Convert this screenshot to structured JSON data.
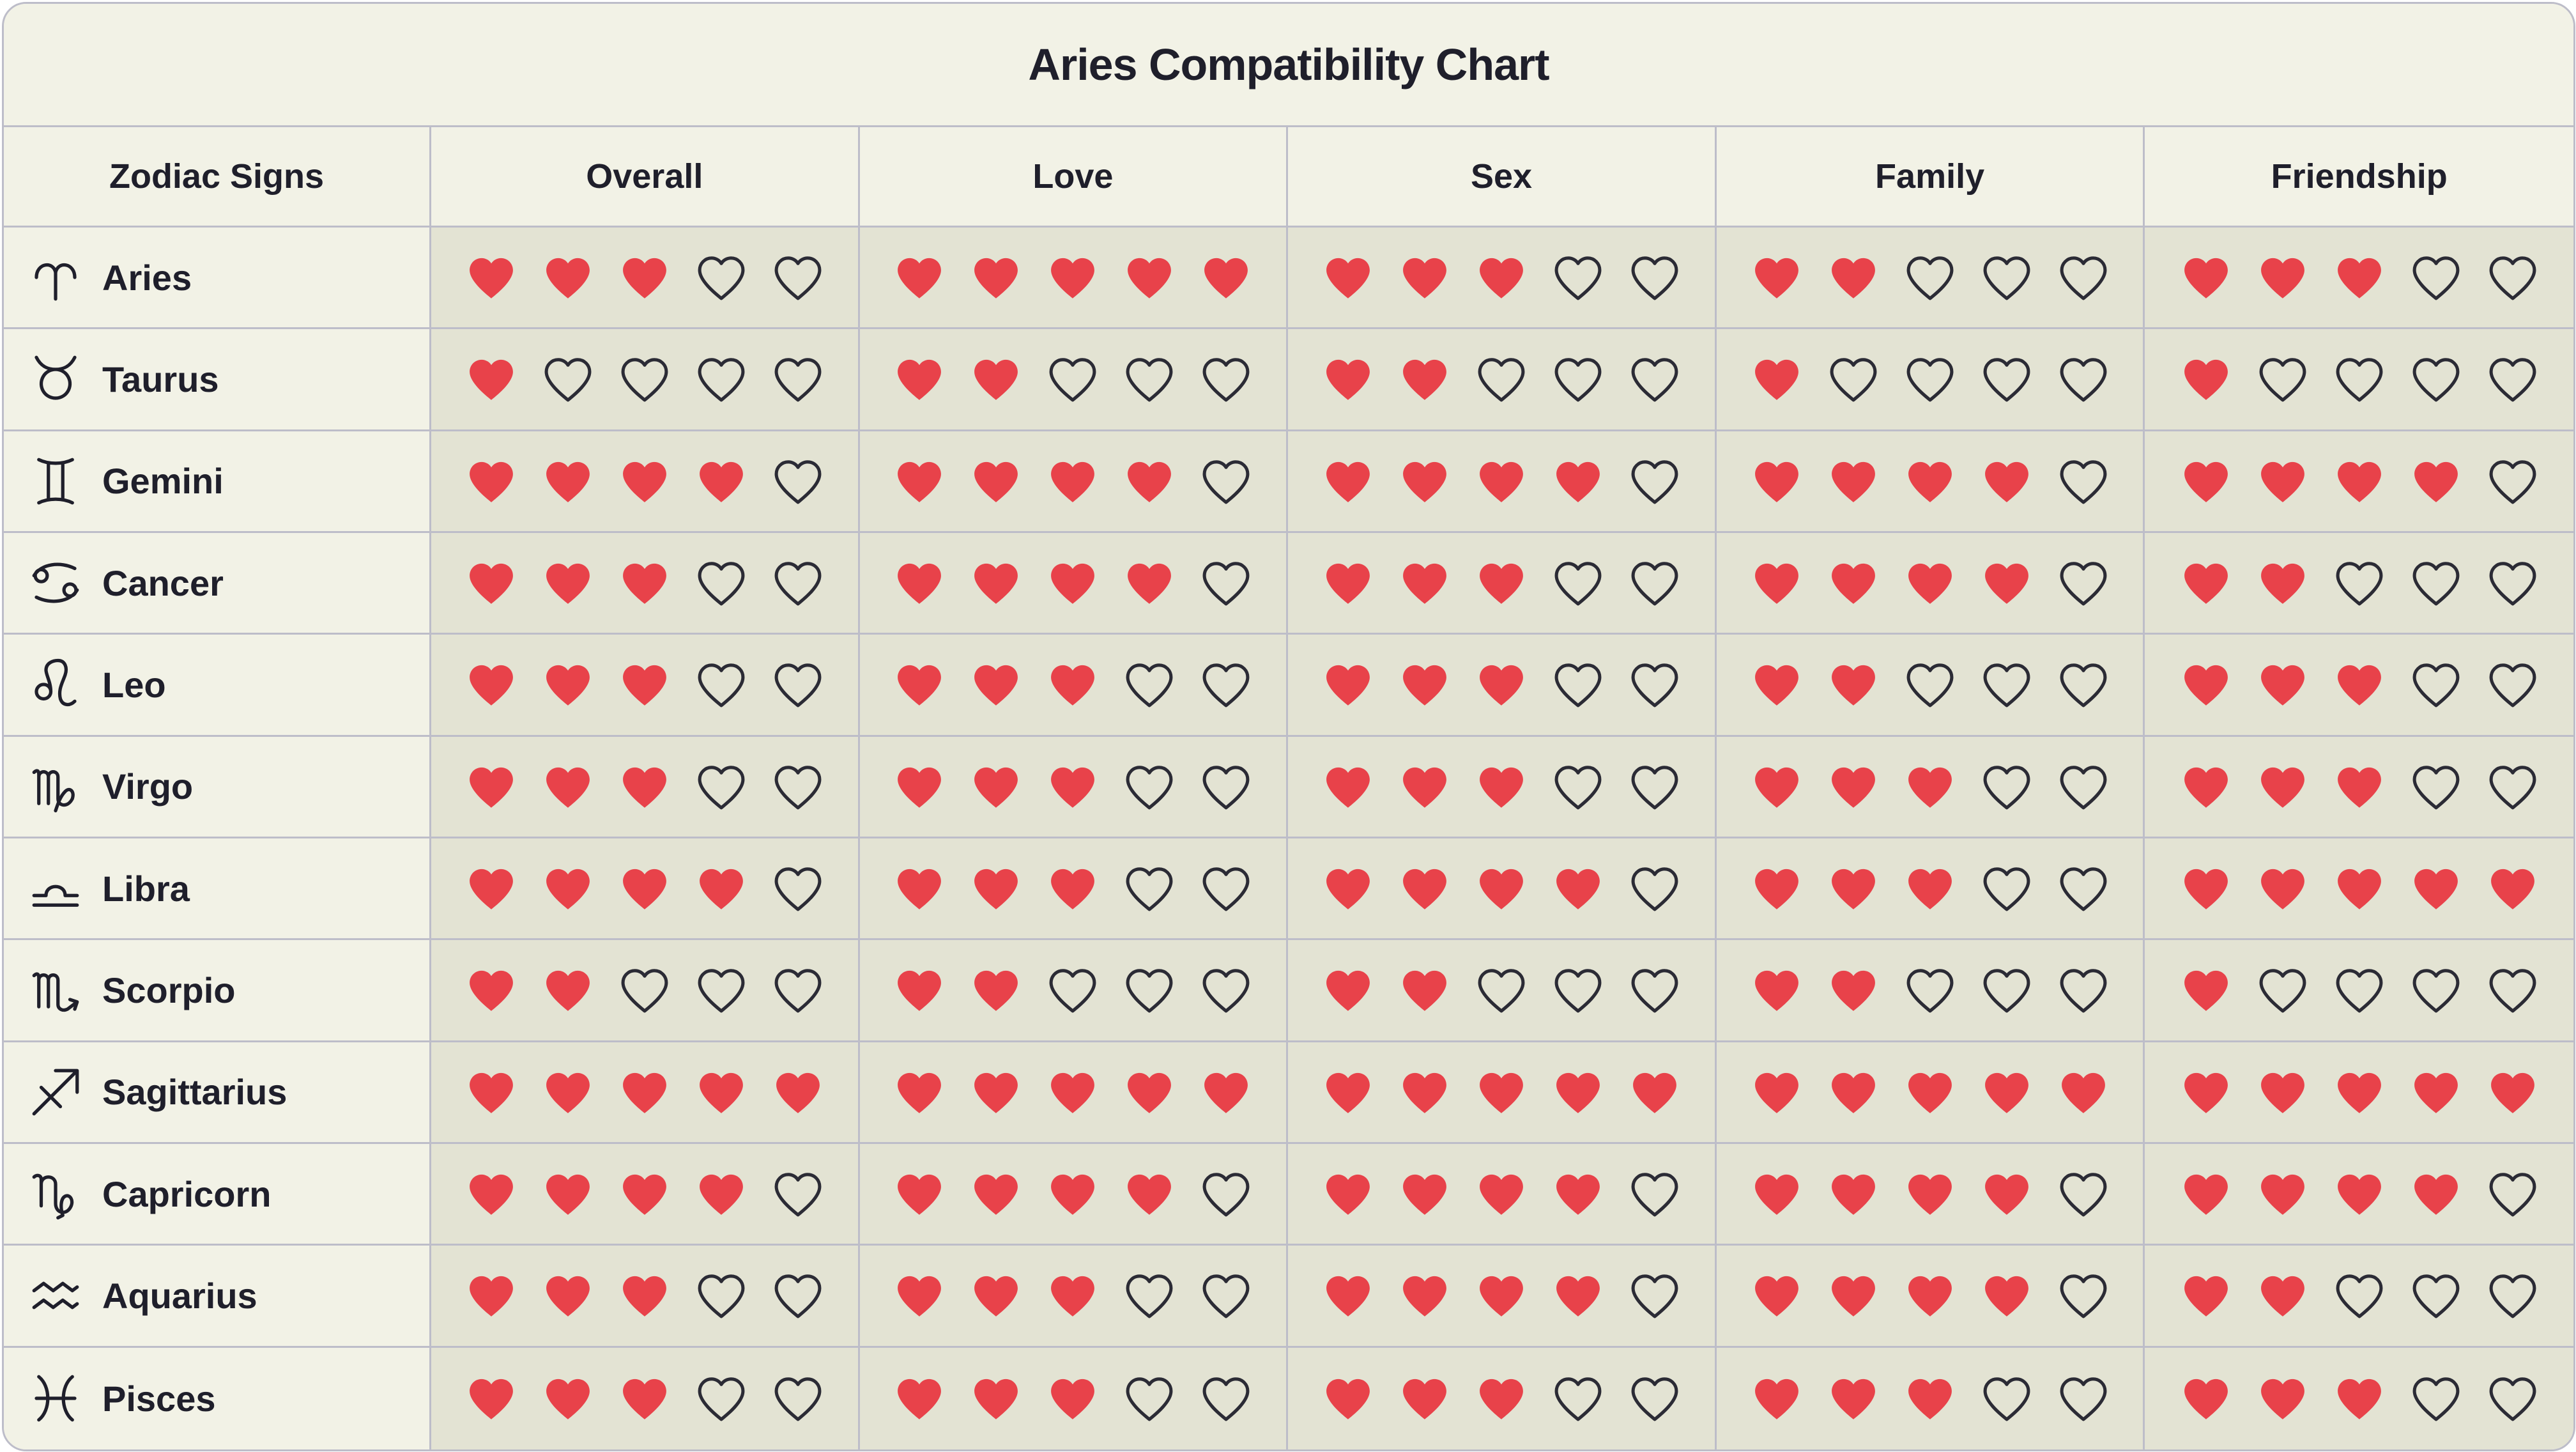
{
  "title": "Aries Compatibility Chart",
  "columns": [
    "Zodiac Signs",
    "Overall",
    "Love",
    "Sex",
    "Family",
    "Friendship"
  ],
  "max_hearts": 5,
  "colors": {
    "filled_heart": "#e8424a",
    "empty_heart_stroke": "#2b2b35",
    "background": "#f2f2e6",
    "cell_background": "#e3e3d3",
    "border": "#bdbdc9"
  },
  "rows": [
    {
      "sign": "Aries",
      "icon": "aries-icon",
      "scores": [
        3,
        5,
        3,
        2,
        3
      ]
    },
    {
      "sign": "Taurus",
      "icon": "taurus-icon",
      "scores": [
        1,
        2,
        2,
        1,
        1
      ]
    },
    {
      "sign": "Gemini",
      "icon": "gemini-icon",
      "scores": [
        4,
        4,
        4,
        4,
        4
      ]
    },
    {
      "sign": "Cancer",
      "icon": "cancer-icon",
      "scores": [
        3,
        4,
        3,
        4,
        2
      ]
    },
    {
      "sign": "Leo",
      "icon": "leo-icon",
      "scores": [
        3,
        3,
        3,
        2,
        3
      ]
    },
    {
      "sign": "Virgo",
      "icon": "virgo-icon",
      "scores": [
        3,
        3,
        3,
        3,
        3
      ]
    },
    {
      "sign": "Libra",
      "icon": "libra-icon",
      "scores": [
        4,
        3,
        4,
        3,
        5
      ]
    },
    {
      "sign": "Scorpio",
      "icon": "scorpio-icon",
      "scores": [
        2,
        2,
        2,
        2,
        1
      ]
    },
    {
      "sign": "Sagittarius",
      "icon": "sagittarius-icon",
      "scores": [
        5,
        5,
        5,
        5,
        5
      ]
    },
    {
      "sign": "Capricorn",
      "icon": "capricorn-icon",
      "scores": [
        4,
        4,
        4,
        4,
        4
      ]
    },
    {
      "sign": "Aquarius",
      "icon": "aquarius-icon",
      "scores": [
        3,
        3,
        4,
        4,
        2
      ]
    },
    {
      "sign": "Pisces",
      "icon": "pisces-icon",
      "scores": [
        3,
        3,
        3,
        3,
        3
      ]
    }
  ]
}
